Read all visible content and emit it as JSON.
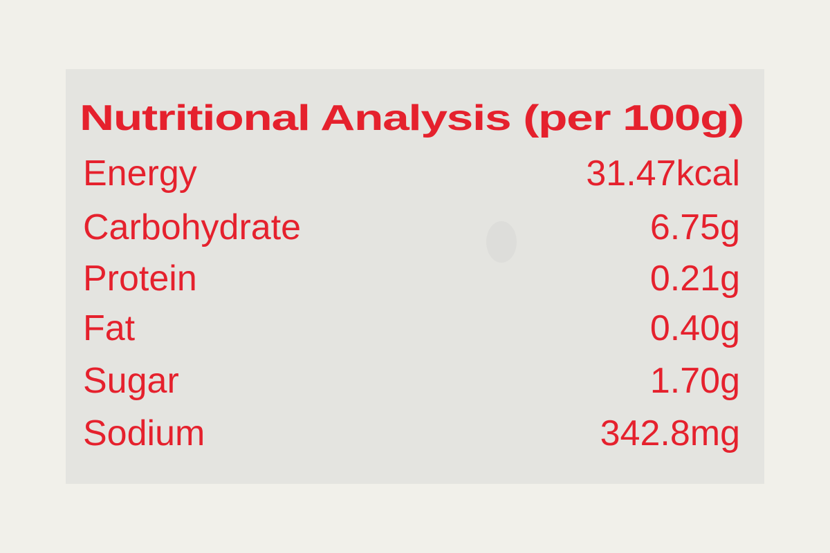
{
  "label": {
    "title": "Nutritional Analysis (per 100g)",
    "rows": [
      [
        "Energy",
        "31.47kcal"
      ],
      [
        "Carbohydrate",
        "6.75g"
      ],
      [
        "Protein",
        "0.21g"
      ],
      [
        "Fat",
        "0.40g"
      ],
      [
        "Sugar",
        "1.70g"
      ],
      [
        "Sodium",
        "342.8mg"
      ]
    ]
  }
}
